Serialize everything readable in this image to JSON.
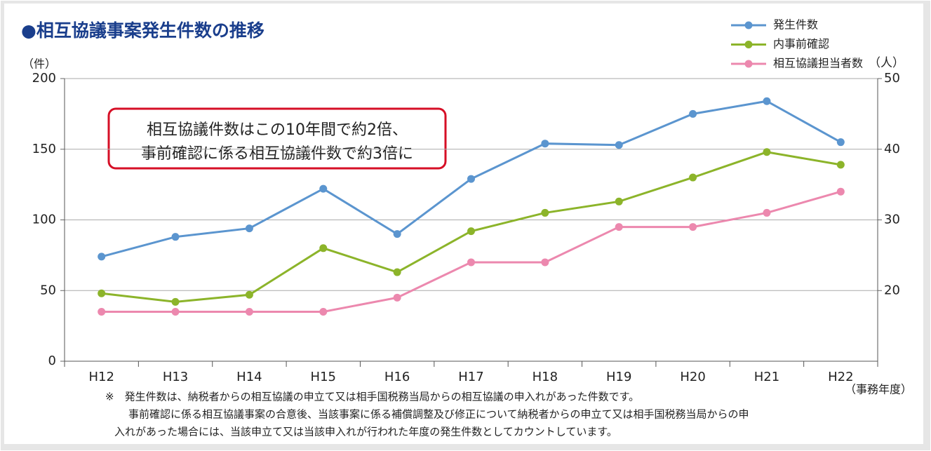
{
  "chart_data": {
    "type": "line",
    "title": "●相互協議事案発生件数の推移",
    "ylabel": "（件）",
    "y2label": "（人）",
    "xlabel": "（事務年度）",
    "annotation": [
      "相互協議件数はこの10年間で約2倍、",
      "事前確認に係る相互協議件数で約3倍に"
    ],
    "notes": [
      "※　発生件数は、納税者からの相互協議の申立て又は相手国税務当局からの相互協議の申入れがあった件数です。",
      "事前確認に係る相互協議事案の合意後、当該事案に係る補償調整及び修正について納税者からの申立て又は相手国税務当局からの申",
      "入れがあった場合には、当該申立て又は当該申入れが行われた年度の発生件数としてカウントしています。"
    ],
    "categories": [
      "H12",
      "H13",
      "H14",
      "H15",
      "H16",
      "H17",
      "H18",
      "H19",
      "H20",
      "H21",
      "H22"
    ],
    "series": [
      {
        "name": "発生件数",
        "color": "#5b95cf",
        "values": [
          74,
          88,
          94,
          122,
          90,
          129,
          154,
          153,
          175,
          184,
          155
        ]
      },
      {
        "name": "内事前確認",
        "color": "#8cb42a",
        "values": [
          48,
          42,
          47,
          80,
          63,
          92,
          105,
          113,
          130,
          148,
          139
        ]
      },
      {
        "name": "相互協議担当者数",
        "color": "#ec88ae",
        "axis": "y2",
        "values": [
          17,
          17,
          17,
          17,
          19,
          24,
          24,
          29,
          29,
          31,
          34
        ]
      }
    ],
    "ylim": [
      0,
      200
    ],
    "yticks": [
      0,
      50,
      100,
      150,
      200
    ],
    "y2lim": [
      10,
      50
    ],
    "y2ticks": [
      20,
      30,
      40,
      50
    ],
    "grid": true,
    "legend": "top-right"
  }
}
